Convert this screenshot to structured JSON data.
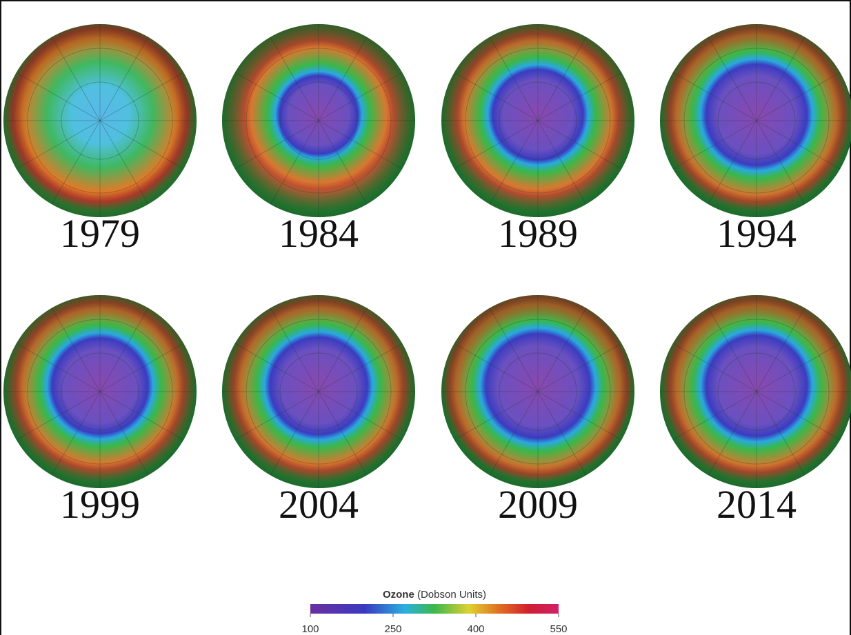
{
  "panels": [
    {
      "year": "1979"
    },
    {
      "year": "1984"
    },
    {
      "year": "1989"
    },
    {
      "year": "1994"
    },
    {
      "year": "1999"
    },
    {
      "year": "2004"
    },
    {
      "year": "2009"
    },
    {
      "year": "2014"
    }
  ],
  "legend": {
    "title": "Ozone",
    "unit": "(Dobson Units)",
    "ticks": [
      "100",
      "250",
      "400",
      "550"
    ]
  }
}
